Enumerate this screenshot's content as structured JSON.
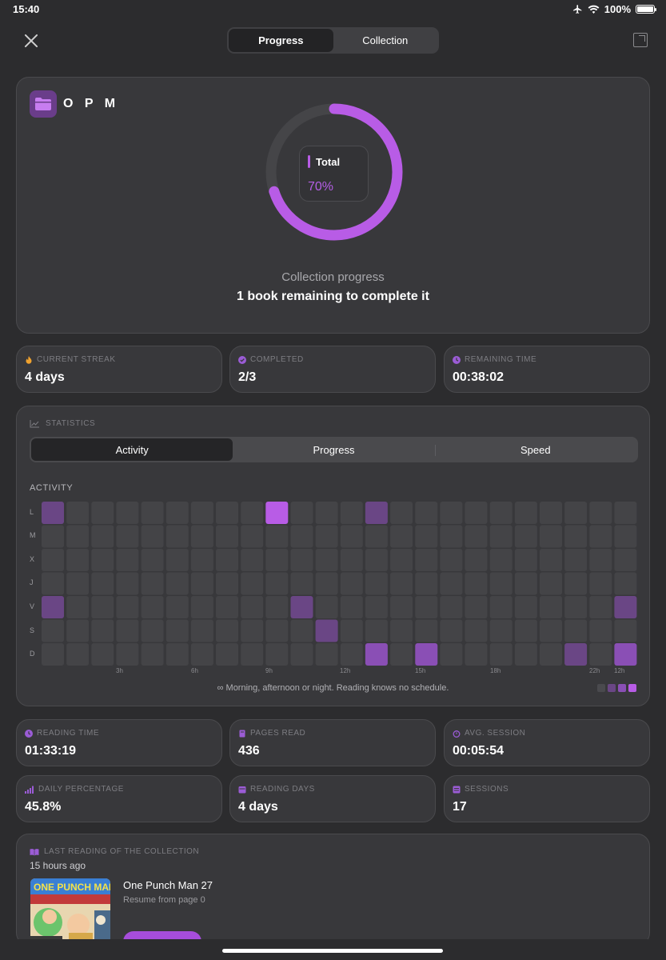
{
  "status": {
    "time": "15:40",
    "battery": "100%"
  },
  "tabs": [
    {
      "label": "Progress",
      "active": true
    },
    {
      "label": "Collection",
      "active": false
    }
  ],
  "collection": {
    "title": "O P M",
    "ring_label": "Total",
    "ring_value": "70%",
    "ring_fraction": 0.7,
    "subtitle": "Collection progress",
    "remaining": "1 book remaining to complete it"
  },
  "stats_top": [
    {
      "label": "CURRENT STREAK",
      "value": "4 days",
      "icon": "flame-icon"
    },
    {
      "label": "COMPLETED",
      "value": "2/3",
      "icon": "check-badge-icon"
    },
    {
      "label": "REMAINING TIME",
      "value": "00:38:02",
      "icon": "clock-badge-icon"
    }
  ],
  "statistics": {
    "heading": "STATISTICS",
    "tabs": [
      "Activity",
      "Progress",
      "Speed"
    ],
    "active_tab": "Activity",
    "activity_label": "ACTIVITY",
    "rows": [
      "L",
      "M",
      "X",
      "J",
      "V",
      "S",
      "D"
    ],
    "hour_labels": [
      "3h",
      "6h",
      "9h",
      "12h",
      "15h",
      "18h",
      "22h",
      "12h"
    ],
    "footer": "Morning, afternoon or night. Reading knows no schedule.",
    "highlights": [
      {
        "row": 0,
        "col": 0,
        "level": 2
      },
      {
        "row": 0,
        "col": 9,
        "level": 4
      },
      {
        "row": 0,
        "col": 13,
        "level": 2
      },
      {
        "row": 4,
        "col": 0,
        "level": 2
      },
      {
        "row": 4,
        "col": 10,
        "level": 2
      },
      {
        "row": 4,
        "col": 23,
        "level": 2
      },
      {
        "row": 5,
        "col": 11,
        "level": 2
      },
      {
        "row": 6,
        "col": 13,
        "level": 3
      },
      {
        "row": 6,
        "col": 15,
        "level": 3
      },
      {
        "row": 6,
        "col": 21,
        "level": 2
      },
      {
        "row": 6,
        "col": 23,
        "level": 3
      }
    ]
  },
  "stats_bottom": [
    {
      "label": "READING TIME",
      "value": "01:33:19",
      "icon": "clock-icon"
    },
    {
      "label": "PAGES READ",
      "value": "436",
      "icon": "book-icon"
    },
    {
      "label": "AVG. SESSION",
      "value": "00:05:54",
      "icon": "timer-icon"
    },
    {
      "label": "DAILY PERCENTAGE",
      "value": "45.8%",
      "icon": "signal-bars-icon"
    },
    {
      "label": "READING DAYS",
      "value": "4 days",
      "icon": "calendar-icon"
    },
    {
      "label": "SESSIONS",
      "value": "17",
      "icon": "list-icon"
    }
  ],
  "last_reading": {
    "heading": "LAST READING OF THE COLLECTION",
    "time": "15 hours ago",
    "book_title": "One Punch Man 27",
    "resume": "Resume from page 0",
    "cover_text": "ONE PUNCH MAN"
  },
  "colors": {
    "accent": "#b85ce6",
    "card": "#38383b",
    "background": "#2c2c2e"
  }
}
